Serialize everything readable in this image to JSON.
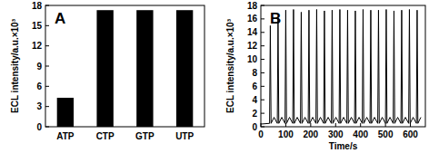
{
  "chart_data": [
    {
      "type": "bar",
      "title": "A",
      "y_label": "ECL intensity/a.u.×10³",
      "categories": [
        "ATP",
        "CTP",
        "GTP",
        "UTP"
      ],
      "values": [
        4.3,
        17.3,
        17.3,
        17.3
      ],
      "color": "#000000",
      "ylim": [
        0,
        18
      ],
      "yticks": [
        0,
        3,
        6,
        9,
        12,
        15,
        18
      ],
      "grid": false
    },
    {
      "type": "line",
      "title": "B",
      "y_label": "ECL intensity/a.u.×10³",
      "x_label": "Time/s",
      "x": [
        0,
        35,
        38,
        41,
        53,
        66,
        69,
        72,
        84,
        97,
        100,
        103,
        115,
        128,
        131,
        134,
        146,
        159,
        162,
        165,
        177,
        190,
        193,
        196,
        208,
        221,
        224,
        227,
        239,
        252,
        255,
        258,
        270,
        283,
        286,
        289,
        301,
        314,
        317,
        320,
        332,
        345,
        348,
        351,
        363,
        376,
        379,
        382,
        394,
        407,
        410,
        413,
        425,
        438,
        441,
        444,
        456,
        469,
        472,
        475,
        487,
        500,
        503,
        506,
        518,
        531,
        534,
        537,
        549,
        562,
        565,
        568,
        580,
        593,
        596,
        599,
        611,
        624,
        627,
        630,
        642
      ],
      "values": [
        0.4,
        0.5,
        15.0,
        0.5,
        1.4,
        0.5,
        16.2,
        0.5,
        1.4,
        0.5,
        17.3,
        0.5,
        1.4,
        0.5,
        17.4,
        0.5,
        1.4,
        0.5,
        17.0,
        0.5,
        1.4,
        0.5,
        17.3,
        0.5,
        1.4,
        0.5,
        17.4,
        0.5,
        1.4,
        0.5,
        17.2,
        0.5,
        1.4,
        0.5,
        17.3,
        0.5,
        1.4,
        0.5,
        17.4,
        0.5,
        1.4,
        0.5,
        17.3,
        0.5,
        1.4,
        0.5,
        17.2,
        0.5,
        1.4,
        0.5,
        17.4,
        0.5,
        1.4,
        0.5,
        17.3,
        0.5,
        1.4,
        0.5,
        17.3,
        0.5,
        1.4,
        0.5,
        17.4,
        0.5,
        1.4,
        0.5,
        17.2,
        0.5,
        1.4,
        0.5,
        17.3,
        0.5,
        1.4,
        0.5,
        17.4,
        0.5,
        1.4,
        0.5,
        17.3,
        0.5,
        1.4
      ],
      "color": "#000000",
      "line_style": "solid",
      "xlim": [
        0,
        660
      ],
      "xticks": [
        0,
        100,
        200,
        300,
        400,
        500,
        600
      ],
      "ylim": [
        0,
        18
      ],
      "yticks": [
        0,
        2,
        4,
        6,
        8,
        10,
        12,
        14,
        16,
        18
      ],
      "grid": false
    }
  ]
}
